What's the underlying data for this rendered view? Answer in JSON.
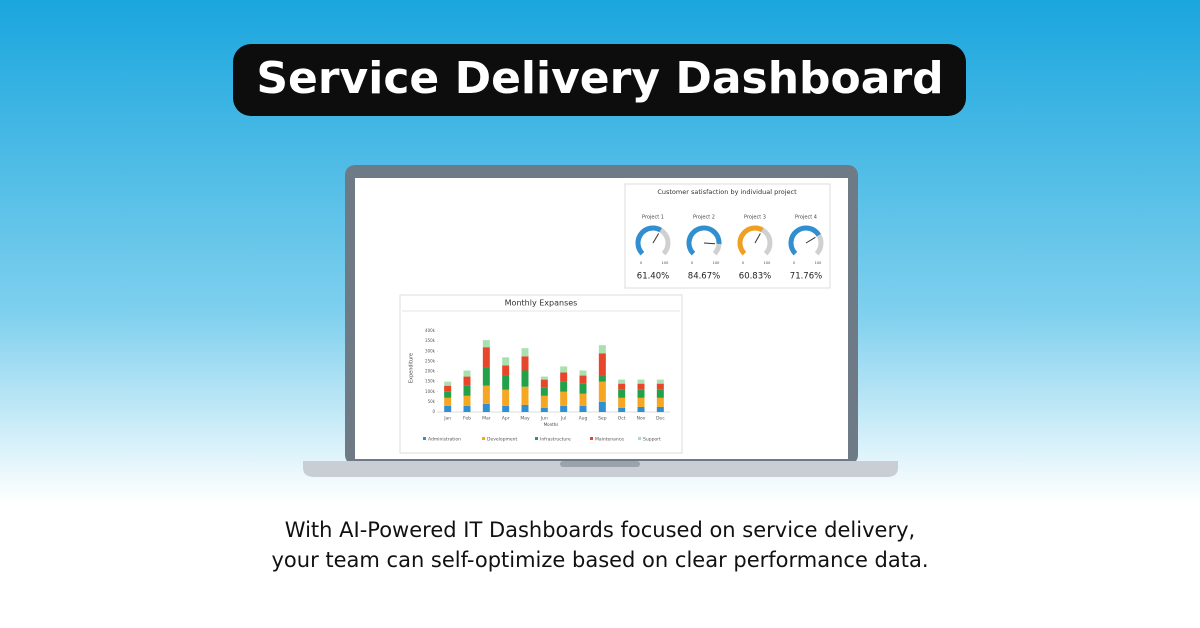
{
  "header": {
    "title": "Service Delivery Dashboard"
  },
  "caption": [
    "With AI-Powered IT Dashboards focused on service delivery,",
    "your team can self-optimize based on clear performance data."
  ],
  "chart_data": [
    {
      "type": "gauge",
      "title": "Customer satisfaction by individual project",
      "categories": [
        "Project 1",
        "Project 2",
        "Project 3",
        "Project 4"
      ],
      "values": [
        61.4,
        84.67,
        60.83,
        71.76
      ],
      "value_labels": [
        "61.40%",
        "84.67%",
        "60.83%",
        "71.76%"
      ],
      "colors": [
        "#2f8fd0",
        "#2f8fd0",
        "#f0a020",
        "#2f8fd0"
      ],
      "ylim": [
        0,
        100
      ],
      "yticks": [
        0,
        100
      ]
    },
    {
      "type": "stacked_bar",
      "title": "Monthly Expanses",
      "ylabel": "Expenditure",
      "xlabel": "Months",
      "categories": [
        "Jan",
        "Feb",
        "Mar",
        "Apr",
        "May",
        "Jun",
        "Jul",
        "Aug",
        "Sep",
        "Oct",
        "Nov",
        "Dec"
      ],
      "ylim": [
        0,
        400000
      ],
      "yticks": [
        0,
        {
          "value": 50000,
          "label": "50k"
        },
        {
          "value": 100000,
          "label": "100k"
        },
        {
          "value": 150000,
          "label": "150k"
        },
        {
          "value": 200000,
          "label": "200k"
        },
        {
          "value": 250000,
          "label": "250k"
        },
        {
          "value": 300000,
          "label": "300k"
        },
        {
          "value": 350000,
          "label": "350k"
        },
        {
          "value": 400000,
          "label": "400k"
        }
      ],
      "series": [
        {
          "name": "Administration",
          "color": "#2f8fd0",
          "values": [
            30000,
            30000,
            40000,
            30000,
            35000,
            20000,
            30000,
            30000,
            50000,
            20000,
            25000,
            25000
          ]
        },
        {
          "name": "Development",
          "color": "#f5a623",
          "values": [
            40000,
            50000,
            90000,
            80000,
            90000,
            60000,
            70000,
            60000,
            100000,
            50000,
            45000,
            45000
          ]
        },
        {
          "name": "Infrastructure",
          "color": "#22a04a",
          "values": [
            30000,
            50000,
            90000,
            70000,
            80000,
            40000,
            50000,
            50000,
            30000,
            40000,
            40000,
            40000
          ]
        },
        {
          "name": "Maintenance",
          "color": "#e8462a",
          "values": [
            30000,
            45000,
            100000,
            50000,
            70000,
            40000,
            45000,
            40000,
            110000,
            30000,
            30000,
            30000
          ]
        },
        {
          "name": "Support",
          "color": "#a8e0b0",
          "values": [
            20000,
            30000,
            35000,
            40000,
            40000,
            15000,
            30000,
            25000,
            40000,
            20000,
            20000,
            20000
          ]
        }
      ]
    }
  ]
}
